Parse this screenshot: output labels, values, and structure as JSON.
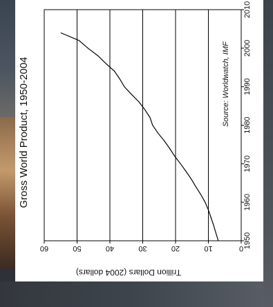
{
  "chart_data": {
    "type": "line",
    "title": "Gross World Product, 1950-2004",
    "ylabel": "Trillion Dollars (2004 dollars)",
    "xlabel": "",
    "source": "Source: Worldwatch, IMF",
    "xlim": [
      1950,
      2010
    ],
    "ylim": [
      0,
      60
    ],
    "x_ticks": [
      "1950",
      "1960",
      "1970",
      "1980",
      "1990",
      "2000",
      "2010"
    ],
    "y_ticks": [
      "0",
      "10",
      "20",
      "30",
      "40",
      "50",
      "60"
    ],
    "grid": "major y gridlines",
    "line_color": "#000000",
    "series": [
      {
        "x": [
          1950,
          1952,
          1954,
          1956,
          1958,
          1960,
          1962,
          1964,
          1966,
          1968,
          1970,
          1972,
          1974,
          1976,
          1978,
          1980,
          1982,
          1984,
          1986,
          1988,
          1990,
          1992,
          1994,
          1996,
          1998,
          2000,
          2002,
          2004
        ],
        "y": [
          7.0,
          7.7,
          8.4,
          9.2,
          10.0,
          11.0,
          12.3,
          13.8,
          15.2,
          16.8,
          18.5,
          20.3,
          21.8,
          23.5,
          25.4,
          27.0,
          27.8,
          29.3,
          31.1,
          33.4,
          35.6,
          37.0,
          38.6,
          41.2,
          43.6,
          46.7,
          49.4,
          55.0
        ]
      }
    ]
  }
}
